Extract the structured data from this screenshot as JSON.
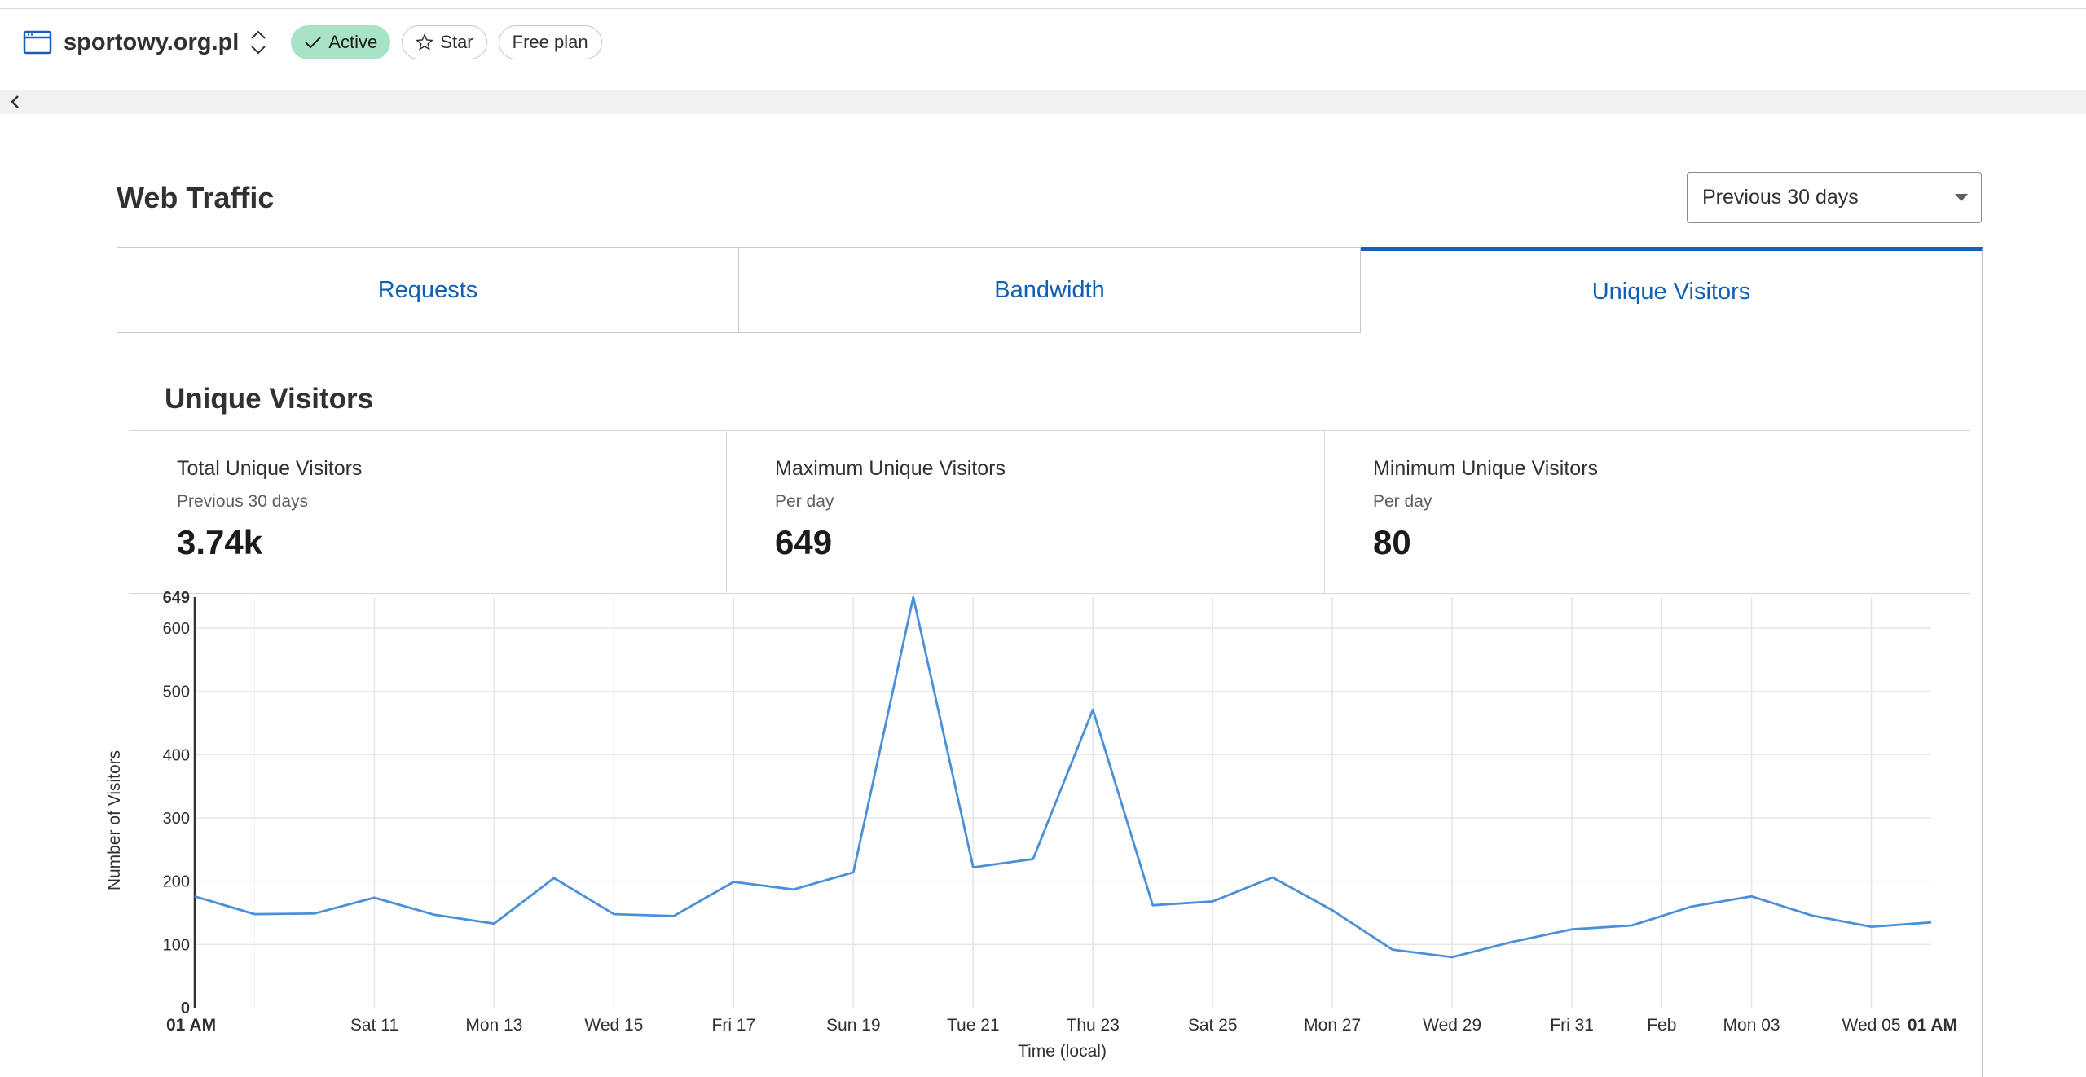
{
  "header": {
    "site_name": "sportowy.org.pl",
    "status_badge": "Active",
    "star_label": "Star",
    "plan_label": "Free plan",
    "accent_color": "#1b5fb4",
    "active_color": "#a7e3c4"
  },
  "page": {
    "title": "Web Traffic",
    "range_select": "Previous 30 days"
  },
  "tabs": [
    {
      "label": "Requests",
      "selected": false
    },
    {
      "label": "Bandwidth",
      "selected": false
    },
    {
      "label": "Unique Visitors",
      "selected": true
    }
  ],
  "panel": {
    "title": "Unique Visitors",
    "stats": [
      {
        "label": "Total Unique Visitors",
        "sub": "Previous 30 days",
        "value": "3.74k"
      },
      {
        "label": "Maximum Unique Visitors",
        "sub": "Per day",
        "value": "649"
      },
      {
        "label": "Minimum Unique Visitors",
        "sub": "Per day",
        "value": "80"
      }
    ]
  },
  "chart_data": {
    "type": "line",
    "title": "",
    "xlabel": "Time (local)",
    "ylabel": "Number of Visitors",
    "ylim": [
      0,
      649
    ],
    "yticks": [
      0,
      100,
      200,
      300,
      400,
      500,
      600,
      649
    ],
    "xticks": [
      "01 AM",
      "Sat 11",
      "Mon 13",
      "Wed 15",
      "Fri 17",
      "Sun 19",
      "Tue 21",
      "Thu 23",
      "Sat 25",
      "Mon 27",
      "Wed 29",
      "Fri 31",
      "Feb",
      "Mon 03",
      "Wed 05",
      "01 AM"
    ],
    "x": [
      "Jan 08",
      "Jan 09",
      "Jan 10",
      "Jan 11",
      "Jan 12",
      "Jan 13",
      "Jan 14",
      "Jan 15",
      "Jan 16",
      "Jan 17",
      "Jan 18",
      "Jan 19",
      "Jan 20",
      "Jan 21",
      "Jan 22",
      "Jan 23",
      "Jan 24",
      "Jan 25",
      "Jan 26",
      "Jan 27",
      "Jan 28",
      "Jan 29",
      "Jan 30",
      "Jan 31",
      "Feb 01",
      "Feb 02",
      "Feb 03",
      "Feb 04",
      "Feb 05",
      "Feb 06"
    ],
    "series": [
      {
        "values": [
          176,
          148,
          149,
          174,
          147,
          133,
          205,
          148,
          145,
          199,
          187,
          214,
          649,
          222,
          235,
          471,
          162,
          168,
          206,
          154,
          92,
          80,
          104,
          124,
          130,
          160,
          176,
          146,
          128,
          135
        ],
        "color": "#4a90d9"
      }
    ],
    "grid": true
  }
}
